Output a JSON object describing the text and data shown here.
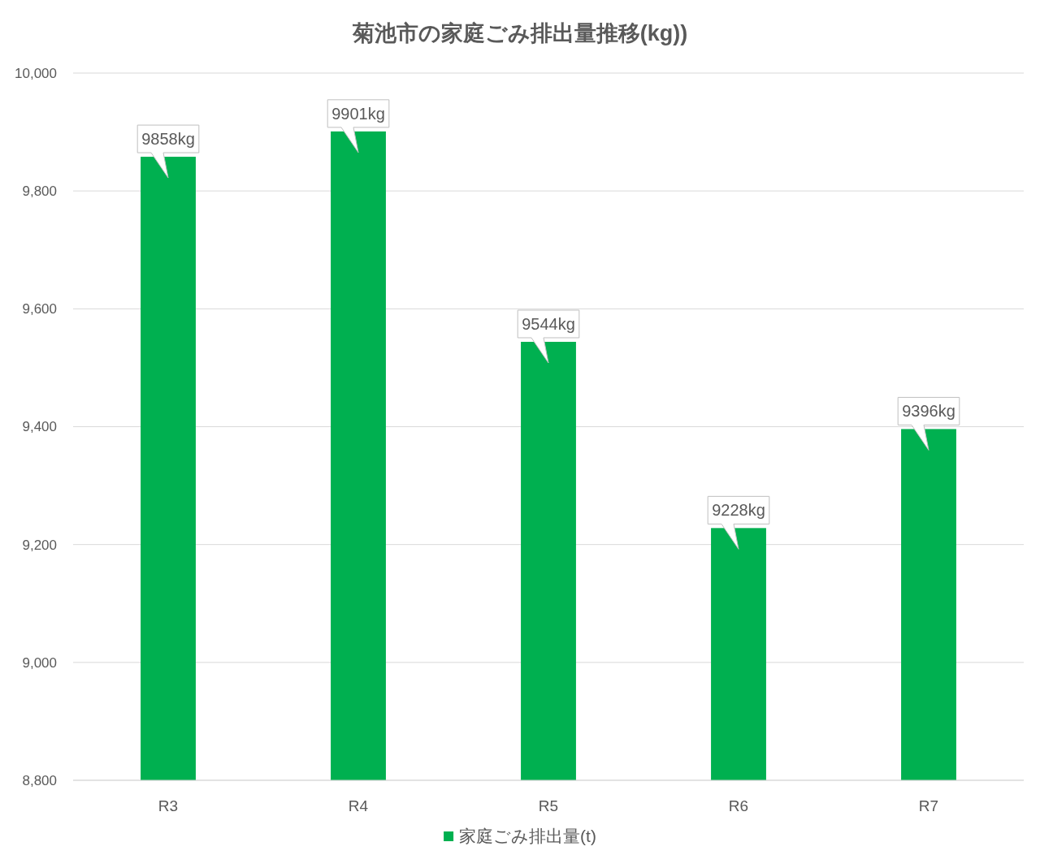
{
  "chart_data": {
    "type": "bar",
    "title": "菊池市の家庭ごみ排出量推移(kg))",
    "categories": [
      "R3",
      "R4",
      "R5",
      "R6",
      "R7"
    ],
    "series": [
      {
        "name": "家庭ごみ排出量(t)",
        "color": "#00b050",
        "values": [
          9858,
          9901,
          9544,
          9228,
          9396
        ],
        "value_labels": [
          "9858kg",
          "9901kg",
          "9544kg",
          "9228kg",
          "9396kg"
        ]
      }
    ],
    "ylim": [
      8800,
      10000
    ],
    "yticks": [
      {
        "value": 8800,
        "label": "8,800"
      },
      {
        "value": 9000,
        "label": "9,000"
      },
      {
        "value": 9200,
        "label": "9,200"
      },
      {
        "value": 9400,
        "label": "9,400"
      },
      {
        "value": 9600,
        "label": "9,600"
      },
      {
        "value": 9800,
        "label": "9,800"
      },
      {
        "value": 10000,
        "label": "10,000"
      }
    ],
    "grid": "y",
    "legend": "bottom"
  }
}
